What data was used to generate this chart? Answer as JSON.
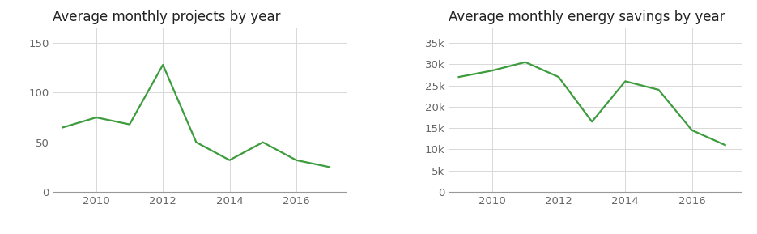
{
  "left_title": "Average monthly projects by year",
  "right_title": "Average monthly energy savings by year",
  "projects_years": [
    2009,
    2010,
    2011,
    2012,
    2013,
    2014,
    2015,
    2016,
    2017
  ],
  "projects_values": [
    65,
    75,
    68,
    128,
    50,
    32,
    50,
    32,
    25
  ],
  "energy_years": [
    2009,
    2010,
    2011,
    2012,
    2013,
    2014,
    2015,
    2016,
    2017
  ],
  "energy_values": [
    27000,
    28500,
    30500,
    27000,
    16500,
    26000,
    24000,
    14500,
    11000
  ],
  "line_color": "#3d9c3d",
  "background_color": "#ffffff",
  "grid_color": "#d8d8d8",
  "title_fontsize": 12,
  "tick_fontsize": 9.5,
  "tick_color": "#666666",
  "projects_ylim": [
    0,
    165
  ],
  "projects_yticks": [
    0,
    50,
    100,
    150
  ],
  "energy_ylim": [
    0,
    38500
  ],
  "energy_yticks": [
    0,
    5000,
    10000,
    15000,
    20000,
    25000,
    30000,
    35000
  ],
  "xticks": [
    2010,
    2012,
    2014,
    2016
  ],
  "xlim_left": [
    2008.7,
    2017.5
  ],
  "xlim_right": [
    2008.7,
    2017.5
  ]
}
